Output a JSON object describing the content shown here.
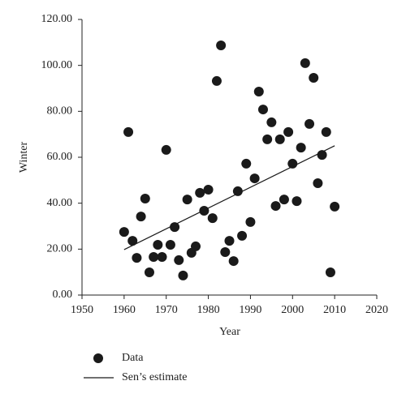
{
  "chart_data": {
    "type": "scatter",
    "xlabel": "Year",
    "ylabel": "Winter",
    "xlim": [
      1950,
      2020
    ],
    "xticks": [
      1950,
      1960,
      1970,
      1980,
      1990,
      2000,
      2010,
      2020
    ],
    "ylim": [
      0,
      120
    ],
    "yticks": [
      {
        "value": 0,
        "label": "0.00"
      },
      {
        "value": 20,
        "label": "20.00"
      },
      {
        "value": 40,
        "label": "40.00"
      },
      {
        "value": 60,
        "label": "60.00"
      },
      {
        "value": 80,
        "label": "80.00"
      },
      {
        "value": 100,
        "label": "100.00"
      },
      {
        "value": 120,
        "label": "120.00"
      }
    ],
    "series": [
      {
        "name": "Data",
        "style": "markers",
        "color": "#1a1a1a",
        "x": [
          1960,
          1961,
          1962,
          1963,
          1964,
          1965,
          1966,
          1967,
          1968,
          1969,
          1970,
          1971,
          1972,
          1973,
          1974,
          1975,
          1976,
          1977,
          1978,
          1979,
          1980,
          1981,
          1982,
          1983,
          1984,
          1985,
          1986,
          1987,
          1988,
          1989,
          1990,
          1991,
          1992,
          1993,
          1994,
          1995,
          1996,
          1997,
          1998,
          1999,
          2000,
          2001,
          2002,
          2003,
          2004,
          2005,
          2006,
          2007,
          2008,
          2009,
          2010
        ],
        "values": [
          27.5,
          71,
          23.6,
          16.2,
          34.2,
          42,
          9.9,
          16.6,
          21.9,
          16.6,
          63.2,
          21.9,
          29.6,
          15.2,
          8.5,
          41.6,
          18.4,
          21.2,
          44.5,
          36.7,
          45.9,
          33.5,
          93.2,
          108.7,
          18.7,
          23.6,
          14.8,
          45.2,
          25.8,
          57.2,
          31.8,
          50.8,
          88.6,
          80.8,
          67.8,
          75.2,
          38.8,
          67.8,
          41.6,
          71,
          57.2,
          40.9,
          64.2,
          101,
          74.5,
          94.6,
          48.7,
          61,
          71,
          9.9,
          38.5
        ]
      },
      {
        "name": "Sen’s estimate",
        "style": "line",
        "color": "#1a1a1a",
        "x": [
          1960,
          2010
        ],
        "values": [
          19.8,
          65
        ]
      }
    ]
  }
}
